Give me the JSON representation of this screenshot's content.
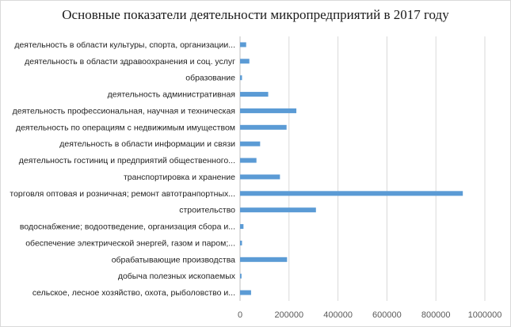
{
  "chart_data": {
    "type": "bar",
    "orientation": "horizontal",
    "title": "Основные показатели деятельности микропредприятий в 2017 году",
    "xlabel": "",
    "ylabel": "",
    "xlim": [
      0,
      1000000
    ],
    "x_ticks": [
      0,
      200000,
      400000,
      600000,
      800000,
      1000000
    ],
    "x_tick_labels": [
      "0",
      "200000",
      "400000",
      "600000",
      "800000",
      "1000000"
    ],
    "grid": "vertical",
    "legend": "none",
    "bar_color": "#5b9bd5",
    "categories": [
      "деятельность в области культуры,  спорта, организации...",
      "деятельность в области здравоохранения и соц. услуг",
      "образование",
      "деятельность административная",
      "деятельность профессиональная, научная и техническая",
      "деятельность по операциям с недвижимым имуществом",
      "деятельность в области информации и связи",
      "деятельность гостиниц и предприятий общественного...",
      "транспортировка и хранение",
      "торговля оптовая и розничная; ремонт автотранпортных...",
      "строительство",
      "водоснабжение; водоотведение, организация сбора и...",
      "обеспечение электрической энергей, газом и паром;...",
      "обрабатывающие производства",
      "добыча полезных ископаемых",
      "сельское, лесное хозяйство, охота, рыболовство и..."
    ],
    "values": [
      25000,
      38000,
      8000,
      115000,
      230000,
      190000,
      82000,
      67000,
      163000,
      910000,
      310000,
      14000,
      8000,
      192000,
      6000,
      45000
    ]
  }
}
